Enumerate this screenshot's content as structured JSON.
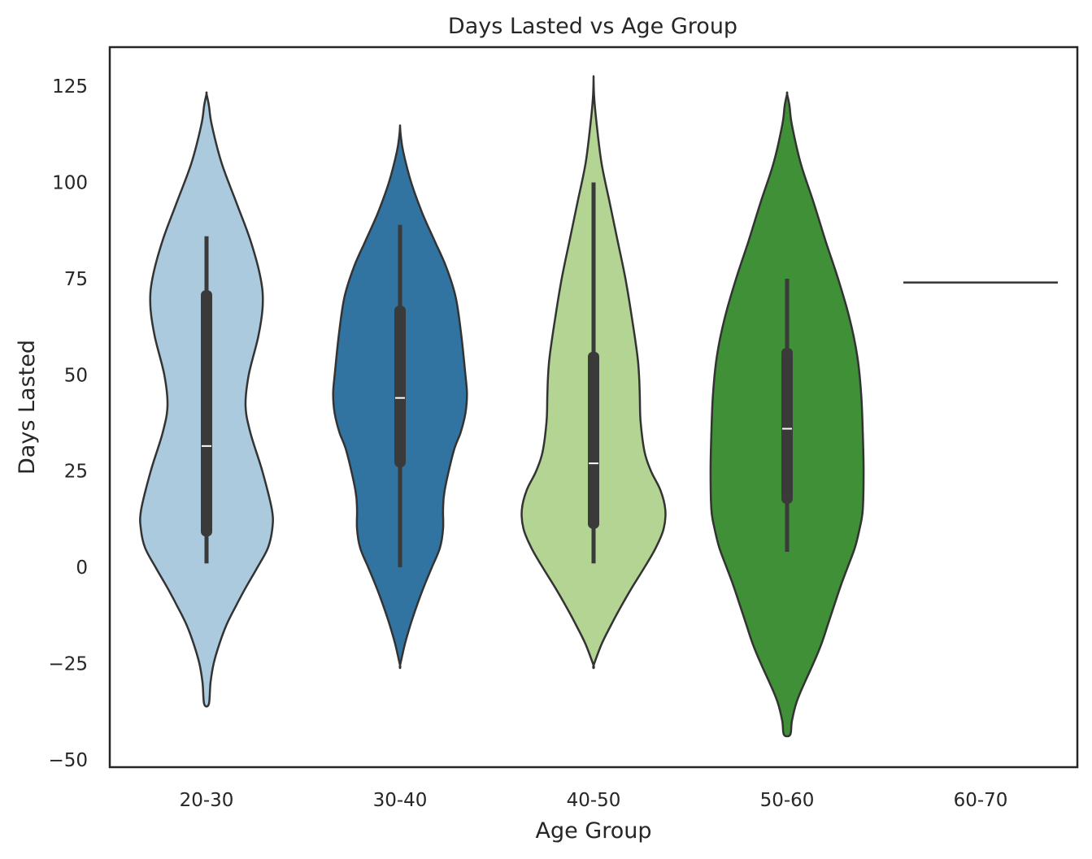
{
  "chart_data": {
    "type": "violin",
    "title": "Days Lasted vs Age Group",
    "xlabel": "Age Group",
    "ylabel": "Days Lasted",
    "ylim": [
      -52,
      134
    ],
    "yticks": [
      -50,
      -25,
      0,
      25,
      50,
      75,
      100,
      125
    ],
    "ytick_labels": [
      "−50",
      "−25",
      "0",
      "25",
      "50",
      "75",
      "100",
      "125"
    ],
    "grid": false,
    "categories": [
      "20-30",
      "30-40",
      "40-50",
      "50-60",
      "60-70"
    ],
    "colors": {
      "20-30": "#abcadd",
      "30-40": "#3274a1",
      "40-50": "#b4d494",
      "50-60": "#3f9037",
      "60-70": "#555555",
      "outline": "#333333",
      "box": "#3a3a3a",
      "median": "#ffffff"
    },
    "groups": [
      {
        "category": "20-30",
        "min": 1,
        "q1": 8,
        "median": 31.5,
        "q3": 72,
        "max": 86,
        "range": [
          -35.5,
          123
        ],
        "profile": [
          [
            123,
            0.0
          ],
          [
            120,
            0.03
          ],
          [
            115,
            0.065
          ],
          [
            105,
            0.19
          ],
          [
            95,
            0.37
          ],
          [
            85,
            0.55
          ],
          [
            75,
            0.68
          ],
          [
            68,
            0.705
          ],
          [
            60,
            0.65
          ],
          [
            50,
            0.53
          ],
          [
            42,
            0.49
          ],
          [
            35,
            0.55
          ],
          [
            25,
            0.7
          ],
          [
            15,
            0.82
          ],
          [
            10,
            0.825
          ],
          [
            5,
            0.77
          ],
          [
            0,
            0.64
          ],
          [
            -5,
            0.5
          ],
          [
            -10,
            0.37
          ],
          [
            -15,
            0.25
          ],
          [
            -20,
            0.16
          ],
          [
            -25,
            0.09
          ],
          [
            -30,
            0.05
          ],
          [
            -35.5,
            0.03
          ]
        ]
      },
      {
        "category": "30-40",
        "min": 0,
        "q1": 26,
        "median": 44,
        "q3": 68,
        "max": 89,
        "range": [
          -25.5,
          114.5
        ],
        "profile": [
          [
            114.5,
            0.0
          ],
          [
            112,
            0.01
          ],
          [
            108,
            0.04
          ],
          [
            100,
            0.14
          ],
          [
            92,
            0.28
          ],
          [
            85,
            0.43
          ],
          [
            78,
            0.58
          ],
          [
            70,
            0.7
          ],
          [
            60,
            0.77
          ],
          [
            50,
            0.82
          ],
          [
            45,
            0.84
          ],
          [
            40,
            0.82
          ],
          [
            35,
            0.76
          ],
          [
            30,
            0.67
          ],
          [
            20,
            0.56
          ],
          [
            15,
            0.54
          ],
          [
            10,
            0.54
          ],
          [
            5,
            0.5
          ],
          [
            0,
            0.4
          ],
          [
            -5,
            0.3
          ],
          [
            -10,
            0.21
          ],
          [
            -15,
            0.13
          ],
          [
            -20,
            0.06
          ],
          [
            -25.5,
            0.0
          ]
        ]
      },
      {
        "category": "40-50",
        "min": 1,
        "q1": 10,
        "median": 27,
        "q3": 56,
        "max": 100,
        "range": [
          -25.5,
          127
        ],
        "profile": [
          [
            127,
            0.0
          ],
          [
            122,
            0.008
          ],
          [
            115,
            0.04
          ],
          [
            105,
            0.1
          ],
          [
            95,
            0.2
          ],
          [
            85,
            0.3
          ],
          [
            75,
            0.4
          ],
          [
            65,
            0.48
          ],
          [
            55,
            0.55
          ],
          [
            50,
            0.57
          ],
          [
            45,
            0.58
          ],
          [
            38,
            0.59
          ],
          [
            30,
            0.64
          ],
          [
            25,
            0.72
          ],
          [
            20,
            0.84
          ],
          [
            15,
            0.9
          ],
          [
            10,
            0.88
          ],
          [
            5,
            0.78
          ],
          [
            0,
            0.64
          ],
          [
            -5,
            0.49
          ],
          [
            -10,
            0.35
          ],
          [
            -15,
            0.22
          ],
          [
            -20,
            0.1
          ],
          [
            -25.5,
            0.0
          ]
        ]
      },
      {
        "category": "50-60",
        "min": 4,
        "q1": 16.5,
        "median": 36,
        "q3": 57,
        "max": 75,
        "range": [
          -43.5,
          123
        ],
        "profile": [
          [
            123,
            0.0
          ],
          [
            120,
            0.03
          ],
          [
            115,
            0.06
          ],
          [
            105,
            0.17
          ],
          [
            95,
            0.33
          ],
          [
            85,
            0.48
          ],
          [
            75,
            0.64
          ],
          [
            65,
            0.78
          ],
          [
            55,
            0.88
          ],
          [
            45,
            0.93
          ],
          [
            35,
            0.95
          ],
          [
            25,
            0.96
          ],
          [
            15,
            0.95
          ],
          [
            10,
            0.91
          ],
          [
            5,
            0.85
          ],
          [
            0,
            0.76
          ],
          [
            -5,
            0.67
          ],
          [
            -10,
            0.59
          ],
          [
            -15,
            0.51
          ],
          [
            -20,
            0.43
          ],
          [
            -25,
            0.33
          ],
          [
            -30,
            0.22
          ],
          [
            -35,
            0.12
          ],
          [
            -40,
            0.06
          ],
          [
            -43.5,
            0.04
          ]
        ]
      },
      {
        "category": "60-70",
        "single_value": 74
      }
    ]
  }
}
